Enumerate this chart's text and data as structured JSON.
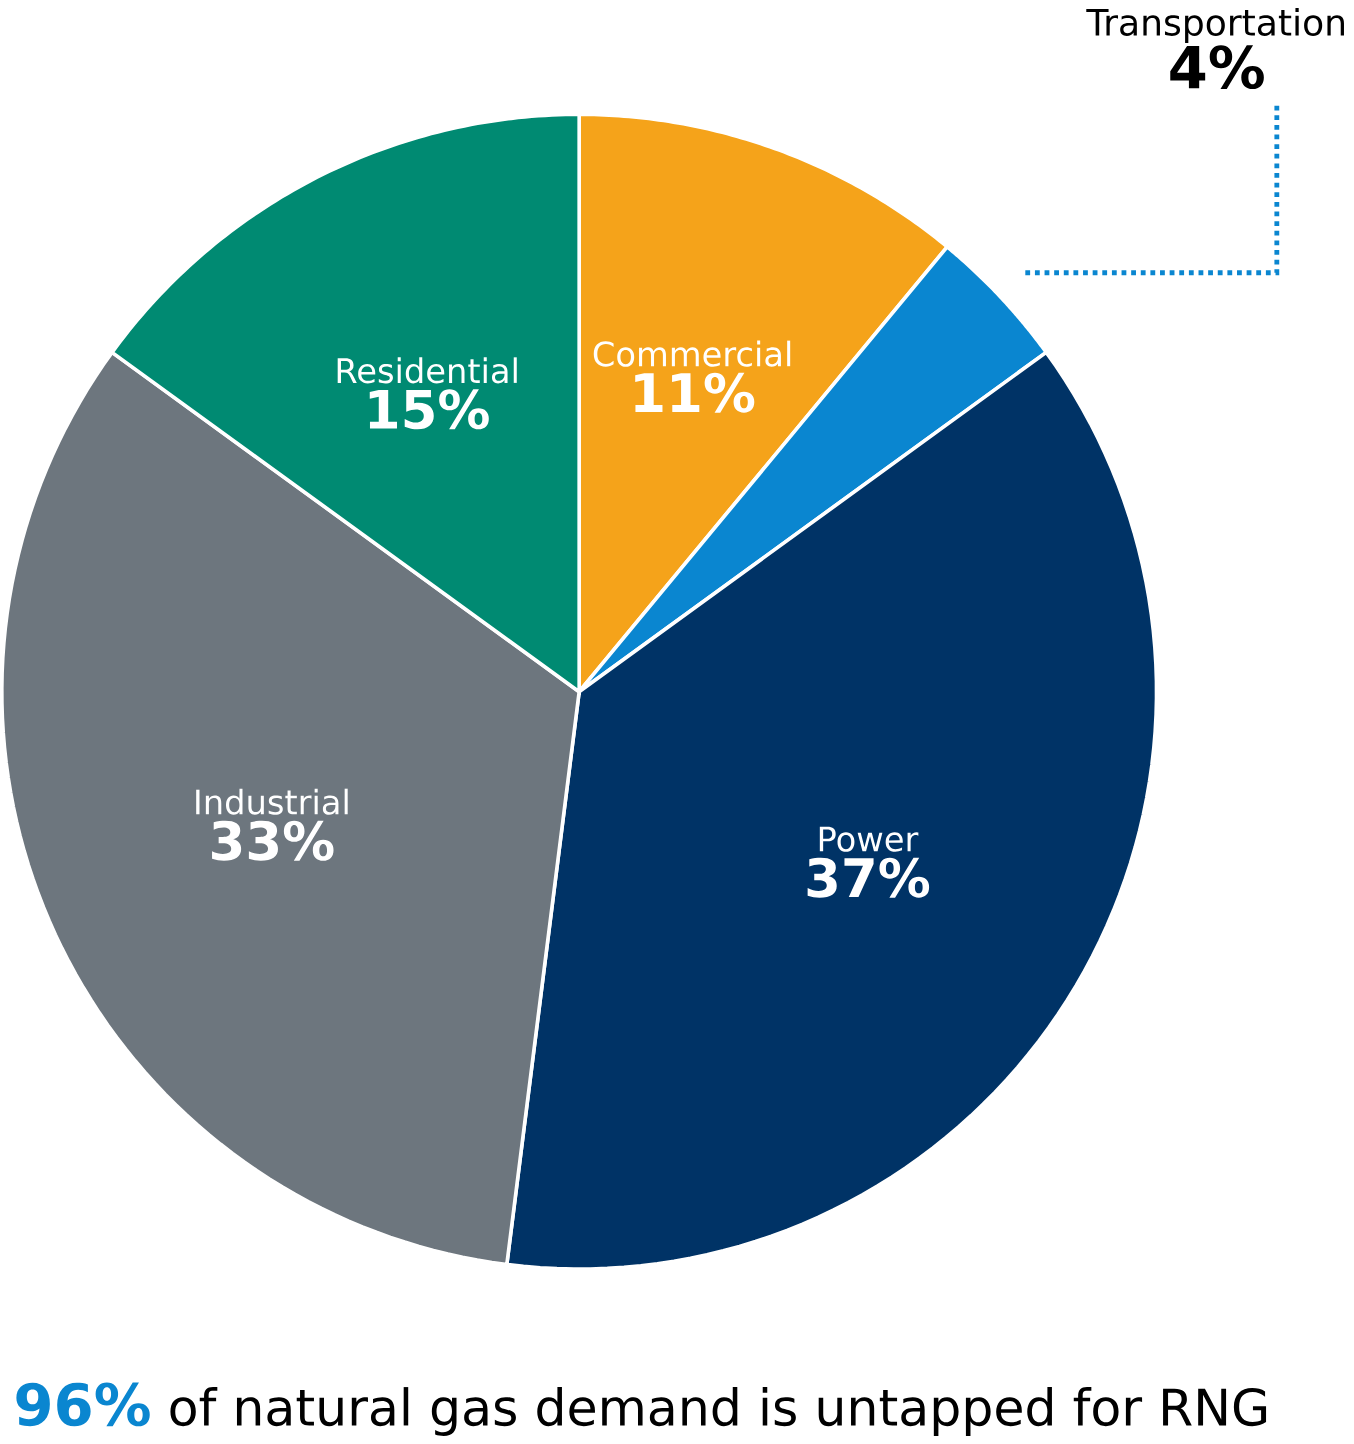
{
  "chart_data": {
    "type": "pie",
    "categories": [
      "Commercial",
      "Transportation",
      "Power",
      "Industrial",
      "Residential"
    ],
    "values": [
      11,
      4,
      37,
      33,
      15
    ],
    "colors": [
      "#f5a31a",
      "#0a86d0",
      "#003366",
      "#6d767e",
      "#008a72"
    ],
    "value_labels": [
      "11%",
      "4%",
      "37%",
      "33%",
      "15%"
    ],
    "annotations": [
      "96%",
      "of natural gas demand is untapped for RNG"
    ]
  }
}
